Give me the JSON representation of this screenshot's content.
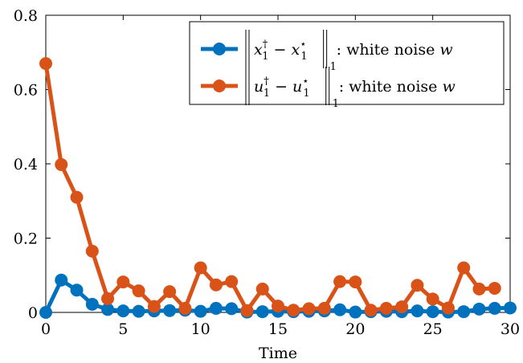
{
  "chart_data": {
    "type": "line",
    "xlabel": "Time",
    "ylabel": "",
    "xlim": [
      0,
      30
    ],
    "ylim": [
      0,
      0.8
    ],
    "x_ticks": [
      0,
      5,
      10,
      15,
      20,
      25,
      30
    ],
    "y_ticks": [
      0,
      0.2,
      0.4,
      0.6,
      0.8
    ],
    "x_tick_labels": [
      "0",
      "5",
      "10",
      "15",
      "20",
      "25",
      "30"
    ],
    "y_tick_labels": [
      "0",
      "0.2",
      "0.4",
      "0.6",
      "0.8"
    ],
    "grid": false,
    "legend_position": "top-right",
    "series": [
      {
        "name": "‖x₁† − x₁*‖₁ : white noise w",
        "legend_math": {
          "var": "x",
          "suffix": ": white noise",
          "noise_var": "w"
        },
        "color": "#0072bd",
        "x": [
          0,
          1,
          2,
          3,
          4,
          5,
          6,
          7,
          8,
          9,
          10,
          11,
          12,
          13,
          14,
          15,
          16,
          17,
          18,
          19,
          20,
          21,
          22,
          23,
          24,
          25,
          26,
          27,
          28,
          29,
          30
        ],
        "values": [
          0.0,
          0.087,
          0.06,
          0.022,
          0.008,
          0.004,
          0.003,
          0.004,
          0.005,
          0.006,
          0.003,
          0.011,
          0.01,
          0.001,
          0.002,
          0.003,
          0.002,
          0.003,
          0.004,
          0.007,
          0.001,
          0.002,
          0.003,
          0.002,
          0.004,
          0.002,
          0.001,
          0.002,
          0.009,
          0.011,
          0.012
        ]
      },
      {
        "name": "‖u₁† − u₁*‖₁ : white noise w",
        "legend_math": {
          "var": "u",
          "suffix": ": white noise",
          "noise_var": "w"
        },
        "color": "#d95319",
        "x": [
          0,
          1,
          2,
          3,
          4,
          5,
          6,
          7,
          8,
          9,
          10,
          11,
          12,
          13,
          14,
          15,
          16,
          17,
          18,
          19,
          20,
          21,
          22,
          23,
          24,
          25,
          26,
          27,
          28,
          29
        ],
        "values": [
          0.67,
          0.398,
          0.31,
          0.165,
          0.037,
          0.082,
          0.058,
          0.016,
          0.056,
          0.011,
          0.12,
          0.074,
          0.083,
          0.005,
          0.063,
          0.017,
          0.006,
          0.01,
          0.011,
          0.083,
          0.082,
          0.006,
          0.011,
          0.015,
          0.073,
          0.036,
          0.012,
          0.12,
          0.063,
          0.065
        ]
      }
    ]
  }
}
